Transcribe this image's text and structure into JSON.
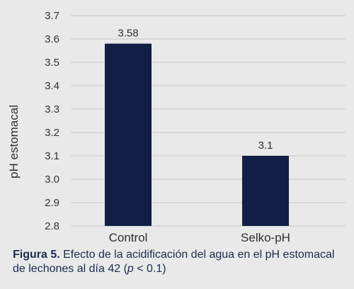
{
  "chart_data": {
    "type": "bar",
    "categories": [
      "Control",
      "Selko-pH"
    ],
    "values": [
      3.58,
      3.1
    ],
    "data_labels": [
      "3.58",
      "3.1"
    ],
    "ylabel": "pH estomacal",
    "xlabel": "",
    "ylim": [
      2.8,
      3.7
    ],
    "yticks": [
      "2.8",
      "2.9",
      "3.0",
      "3.1",
      "3.2",
      "3.3",
      "3.4",
      "3.5",
      "3.6",
      "3.7"
    ],
    "grid": true,
    "bar_color": "#0f1f45",
    "grid_color": "#c8c8c8"
  },
  "caption": {
    "label": "Figura 5.",
    "text_before": " Efecto de la acidificación del agua en el pH estomacal de lechones al día 42 (",
    "italic": "p",
    "text_after": " < 0.1)"
  }
}
